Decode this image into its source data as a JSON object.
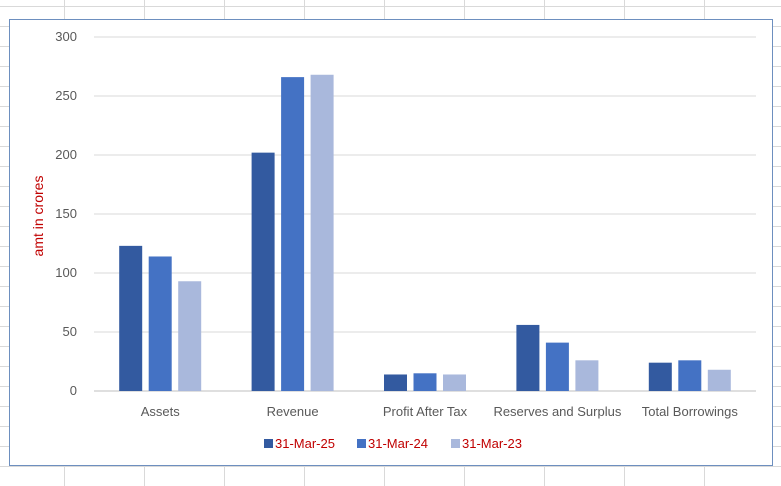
{
  "chart_data": {
    "type": "bar",
    "title": "",
    "xlabel": "",
    "ylabel": "amt in crores",
    "ylim": [
      0,
      300
    ],
    "yticks": [
      0,
      50,
      100,
      150,
      200,
      250,
      300
    ],
    "grid": true,
    "legend_position": "bottom",
    "categories": [
      "Assets",
      "Revenue",
      "Profit After Tax",
      "Reserves and Surplus",
      "Total Borrowings"
    ],
    "series": [
      {
        "name": "31-Mar-25",
        "color": "#335aa0",
        "values": [
          123,
          202,
          14,
          56,
          24
        ]
      },
      {
        "name": "31-Mar-24",
        "color": "#4472c4",
        "values": [
          114,
          266,
          15,
          41,
          26
        ]
      },
      {
        "name": "31-Mar-23",
        "color": "#a9b8dc",
        "values": [
          93,
          268,
          14,
          26,
          18
        ]
      }
    ]
  }
}
